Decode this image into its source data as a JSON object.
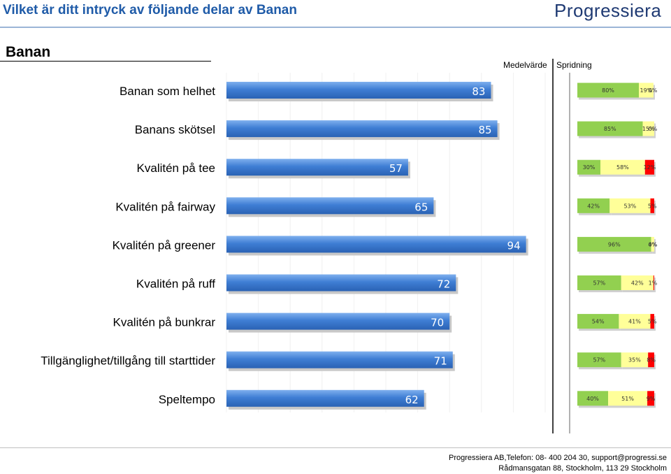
{
  "header": {
    "title": "Vilket är ditt intryck av följande delar av Banan",
    "logo_text": "Progressiera"
  },
  "section_title": "Banan",
  "columns": {
    "mean": "Medelvärde",
    "spread": "Spridning"
  },
  "footer": {
    "line1": "Progressiera AB,Telefon: 08-  400 204 30, support@progressi.se",
    "line2": "Rådmansgatan 88, Stockholm, 113 29 Stockholm"
  },
  "colors": {
    "bar": "#3f7ed4",
    "green": "#92d050",
    "yellow": "#ffff99",
    "red": "#ff0000",
    "title_blue": "#1f5ba8"
  },
  "chart_data": [
    {
      "type": "bar",
      "title": "Medelvärde",
      "orientation": "horizontal",
      "categories": [
        "Banan som helhet",
        "Banans skötsel",
        "Kvalitén på tee",
        "Kvalitén på fairway",
        "Kvalitén på greener",
        "Kvalitén på ruff",
        "Kvalitén på bunkrar",
        "Tillgänglighet/tillgång till starttider",
        "Speltempo"
      ],
      "values": [
        83,
        85,
        57,
        65,
        94,
        72,
        70,
        71,
        62
      ],
      "xlim": [
        0,
        100
      ]
    },
    {
      "type": "bar",
      "title": "Spridning",
      "orientation": "horizontal",
      "stacked": true,
      "categories": [
        "Banan som helhet",
        "Banans skötsel",
        "Kvalitén på tee",
        "Kvalitén på fairway",
        "Kvalitén på greener",
        "Kvalitén på ruff",
        "Kvalitén på bunkrar",
        "Tillgänglighet/tillgång till starttider",
        "Speltempo"
      ],
      "series": [
        {
          "values": [
            80,
            85,
            30,
            42,
            96,
            57,
            54,
            57,
            40
          ],
          "labels": [
            "80%",
            "85%",
            "30%",
            "42%",
            "96%",
            "57%",
            "54%",
            "57%",
            "40%"
          ]
        },
        {
          "values": [
            19,
            15,
            58,
            53,
            4,
            42,
            41,
            35,
            51
          ],
          "labels": [
            "19%",
            "15%",
            "58%",
            "53%",
            "4%",
            "42%",
            "41%",
            "35%",
            "51%"
          ]
        },
        {
          "values": [
            0,
            0,
            12,
            5,
            0,
            1,
            5,
            8,
            9
          ],
          "labels": [
            "0%",
            "0%",
            "12%",
            "5%",
            "0%",
            "1%",
            "5%",
            "8%",
            "9%"
          ]
        }
      ],
      "xlim": [
        0,
        100
      ]
    }
  ]
}
